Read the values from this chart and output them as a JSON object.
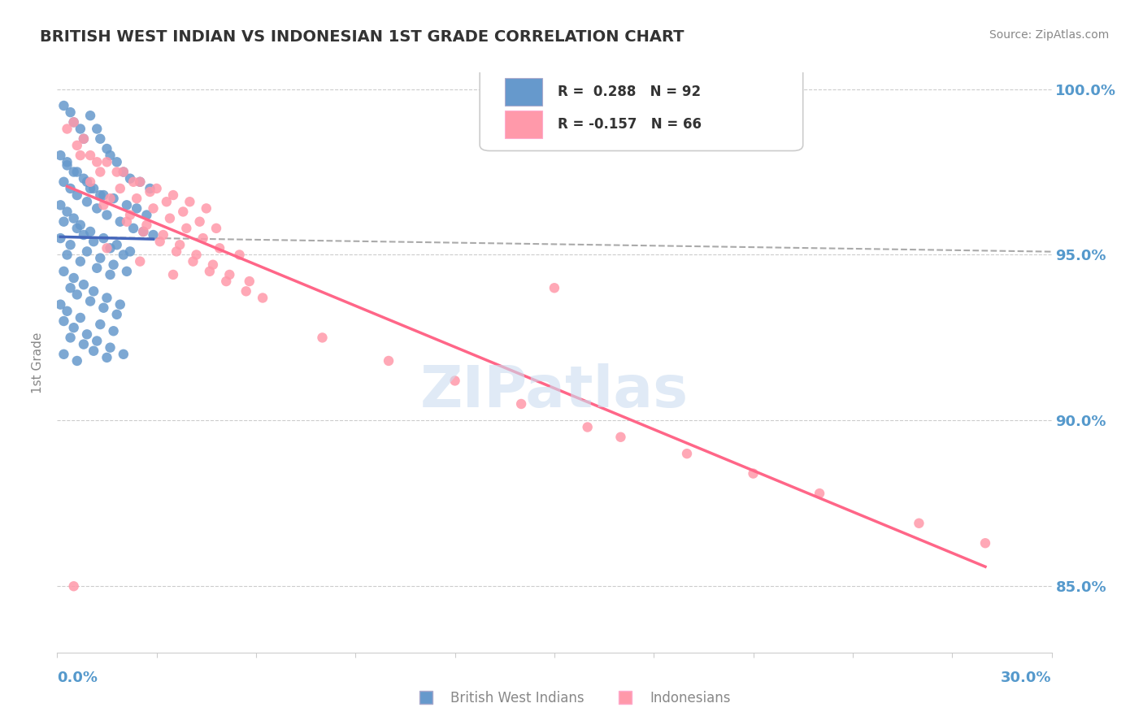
{
  "title": "BRITISH WEST INDIAN VS INDONESIAN 1ST GRADE CORRELATION CHART",
  "source_text": "Source: ZipAtlas.com",
  "ylabel": "1st Grade",
  "xmin": 0.0,
  "xmax": 0.3,
  "ymin": 0.83,
  "ymax": 1.005,
  "yticks": [
    0.85,
    0.9,
    0.95,
    1.0
  ],
  "ytick_labels": [
    "85.0%",
    "90.0%",
    "95.0%",
    "100.0%"
  ],
  "blue_R": 0.288,
  "blue_N": 92,
  "pink_R": -0.157,
  "pink_N": 66,
  "blue_color": "#6699CC",
  "pink_color": "#FF99AA",
  "blue_line_color": "#4466BB",
  "pink_line_color": "#FF6688",
  "axis_label_color": "#5599CC",
  "watermark_color": "#CCDDF0",
  "legend_label_blue": "British West Indians",
  "legend_label_pink": "Indonesians",
  "blue_scatter_x": [
    0.005,
    0.008,
    0.01,
    0.012,
    0.015,
    0.003,
    0.006,
    0.009,
    0.011,
    0.014,
    0.002,
    0.004,
    0.007,
    0.013,
    0.016,
    0.018,
    0.02,
    0.022,
    0.025,
    0.028,
    0.001,
    0.003,
    0.005,
    0.008,
    0.01,
    0.013,
    0.017,
    0.021,
    0.024,
    0.027,
    0.002,
    0.004,
    0.006,
    0.009,
    0.012,
    0.015,
    0.019,
    0.023,
    0.026,
    0.029,
    0.001,
    0.003,
    0.005,
    0.007,
    0.01,
    0.014,
    0.018,
    0.022,
    0.002,
    0.006,
    0.008,
    0.011,
    0.016,
    0.02,
    0.001,
    0.004,
    0.009,
    0.013,
    0.017,
    0.021,
    0.003,
    0.007,
    0.012,
    0.016,
    0.002,
    0.005,
    0.008,
    0.011,
    0.015,
    0.019,
    0.004,
    0.006,
    0.01,
    0.014,
    0.018,
    0.001,
    0.003,
    0.007,
    0.013,
    0.017,
    0.002,
    0.005,
    0.009,
    0.012,
    0.016,
    0.02,
    0.004,
    0.008,
    0.011,
    0.015,
    0.002,
    0.006
  ],
  "blue_scatter_y": [
    0.99,
    0.985,
    0.992,
    0.988,
    0.982,
    0.978,
    0.975,
    0.972,
    0.97,
    0.968,
    0.995,
    0.993,
    0.988,
    0.985,
    0.98,
    0.978,
    0.975,
    0.973,
    0.972,
    0.97,
    0.98,
    0.977,
    0.975,
    0.973,
    0.97,
    0.968,
    0.967,
    0.965,
    0.964,
    0.962,
    0.972,
    0.97,
    0.968,
    0.966,
    0.964,
    0.962,
    0.96,
    0.958,
    0.957,
    0.956,
    0.965,
    0.963,
    0.961,
    0.959,
    0.957,
    0.955,
    0.953,
    0.951,
    0.96,
    0.958,
    0.956,
    0.954,
    0.952,
    0.95,
    0.955,
    0.953,
    0.951,
    0.949,
    0.947,
    0.945,
    0.95,
    0.948,
    0.946,
    0.944,
    0.945,
    0.943,
    0.941,
    0.939,
    0.937,
    0.935,
    0.94,
    0.938,
    0.936,
    0.934,
    0.932,
    0.935,
    0.933,
    0.931,
    0.929,
    0.927,
    0.93,
    0.928,
    0.926,
    0.924,
    0.922,
    0.92,
    0.925,
    0.923,
    0.921,
    0.919,
    0.92,
    0.918
  ],
  "pink_scatter_x": [
    0.005,
    0.008,
    0.01,
    0.015,
    0.02,
    0.025,
    0.03,
    0.035,
    0.04,
    0.045,
    0.003,
    0.006,
    0.012,
    0.018,
    0.023,
    0.028,
    0.033,
    0.038,
    0.043,
    0.048,
    0.007,
    0.013,
    0.019,
    0.024,
    0.029,
    0.034,
    0.039,
    0.044,
    0.049,
    0.055,
    0.01,
    0.016,
    0.022,
    0.027,
    0.032,
    0.037,
    0.042,
    0.047,
    0.052,
    0.058,
    0.014,
    0.021,
    0.026,
    0.031,
    0.036,
    0.041,
    0.046,
    0.051,
    0.057,
    0.062,
    0.08,
    0.1,
    0.12,
    0.14,
    0.16,
    0.19,
    0.21,
    0.23,
    0.26,
    0.28,
    0.005,
    0.015,
    0.025,
    0.035,
    0.15,
    0.17
  ],
  "pink_scatter_y": [
    0.99,
    0.985,
    0.98,
    0.978,
    0.975,
    0.972,
    0.97,
    0.968,
    0.966,
    0.964,
    0.988,
    0.983,
    0.978,
    0.975,
    0.972,
    0.969,
    0.966,
    0.963,
    0.96,
    0.958,
    0.98,
    0.975,
    0.97,
    0.967,
    0.964,
    0.961,
    0.958,
    0.955,
    0.952,
    0.95,
    0.972,
    0.967,
    0.962,
    0.959,
    0.956,
    0.953,
    0.95,
    0.947,
    0.944,
    0.942,
    0.965,
    0.96,
    0.957,
    0.954,
    0.951,
    0.948,
    0.945,
    0.942,
    0.939,
    0.937,
    0.925,
    0.918,
    0.912,
    0.905,
    0.898,
    0.89,
    0.884,
    0.878,
    0.869,
    0.863,
    0.85,
    0.952,
    0.948,
    0.944,
    0.94,
    0.895
  ]
}
